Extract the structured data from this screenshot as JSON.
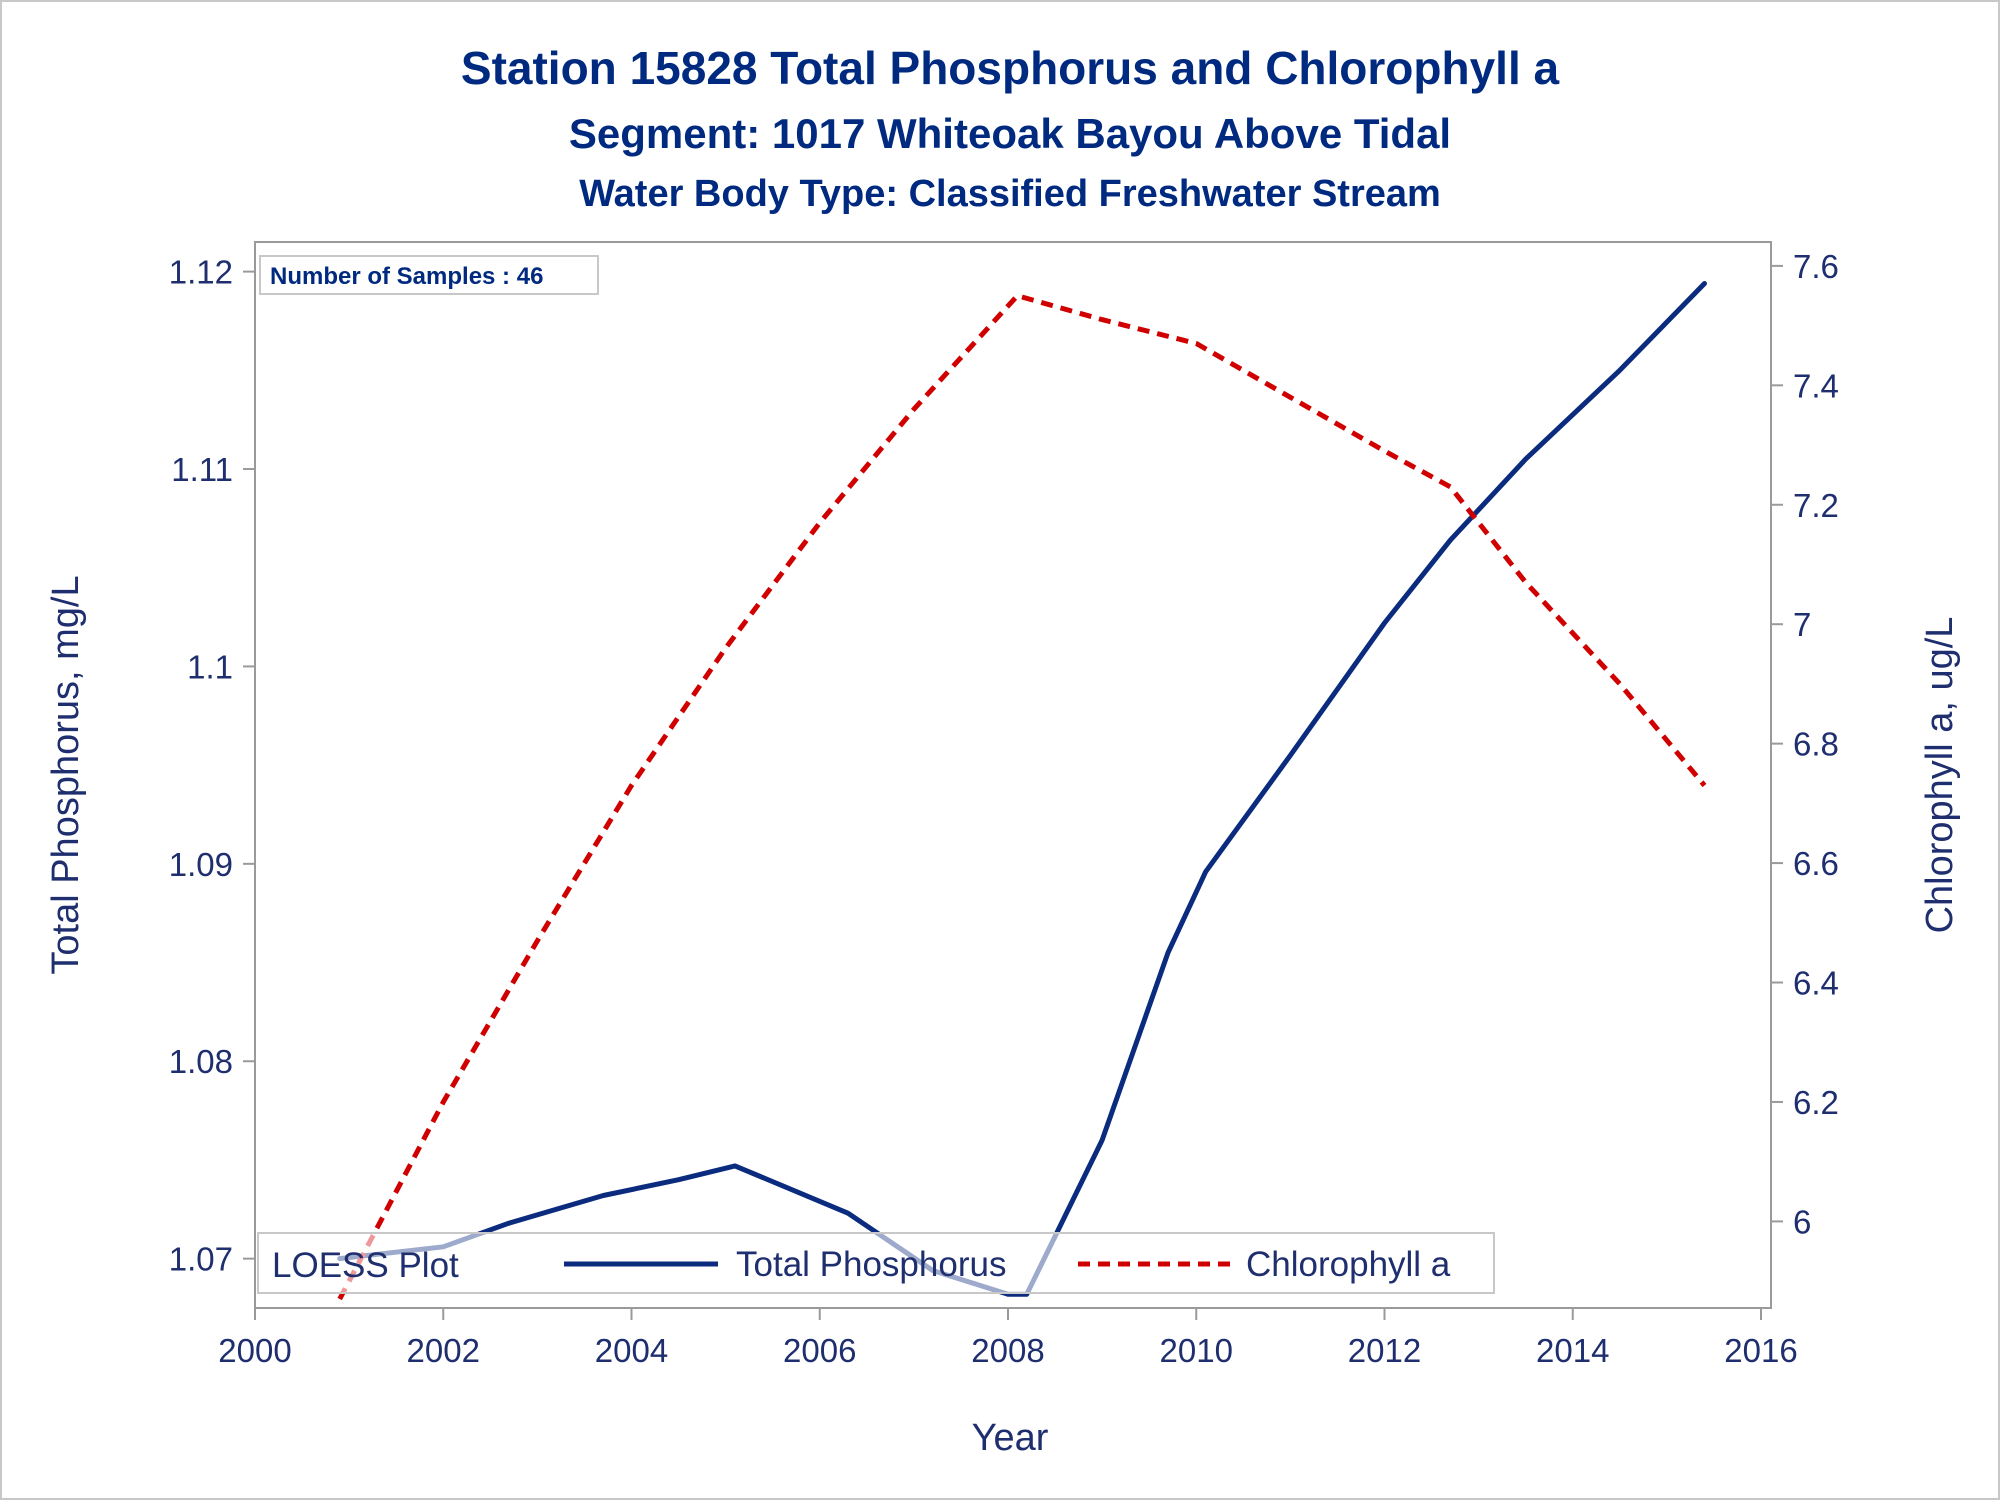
{
  "titles": {
    "line1": "Station 15828   Total Phosphorus and Chlorophyll a",
    "line2": "Segment: 1017  Whiteoak Bayou Above Tidal",
    "line3": "Water Body Type: Classified Freshwater Stream"
  },
  "inset": {
    "samples_label": "Number of Samples : 46"
  },
  "legend": {
    "title": "LOESS Plot",
    "items": [
      {
        "label": "Total Phosphorus",
        "color": "#0b2c7e",
        "style": "solid"
      },
      {
        "label": "Chlorophyll a",
        "color": "#d10000",
        "style": "dashed"
      }
    ]
  },
  "colors": {
    "text": "#1e2e6e",
    "title": "#002a80",
    "axis": "#9a9a9a",
    "tp": "#0b2c7e",
    "chl": "#d10000"
  },
  "chart_data": {
    "type": "line",
    "xlabel": "Year",
    "ylabel": "Total Phosphorus, mg/L",
    "y2label": "Chlorophyll a, ug/L",
    "xlim": [
      2000,
      2016
    ],
    "ylim": [
      1.0675,
      1.1215
    ],
    "y2lim": [
      5.855,
      7.64
    ],
    "xticks": [
      2000,
      2002,
      2004,
      2006,
      2008,
      2010,
      2012,
      2014,
      2016
    ],
    "yticks": [
      1.07,
      1.08,
      1.09,
      1.1,
      1.11,
      1.12
    ],
    "yticklabels": [
      "1.07",
      "1.08",
      "1.09",
      "1.1",
      "1.11",
      "1.12"
    ],
    "y2ticks": [
      6.0,
      6.2,
      6.4,
      6.6,
      6.8,
      7.0,
      7.2,
      7.4,
      7.6
    ],
    "y2ticklabels": [
      "6",
      "6.2",
      "6.4",
      "6.6",
      "6.8",
      "7",
      "7.2",
      "7.4",
      "7.6"
    ],
    "legend_position": "bottom-left",
    "grid": false,
    "series": [
      {
        "name": "Total Phosphorus",
        "axis": "left",
        "x": [
          2000.9,
          2002.0,
          2002.7,
          2003.7,
          2004.5,
          2005.1,
          2006.3,
          2007.2,
          2008.0,
          2008.2,
          2009.0,
          2009.7,
          2010.1,
          2011.0,
          2012.0,
          2012.7,
          2013.5,
          2014.5,
          2015.4
        ],
        "values": [
          1.07,
          1.0706,
          1.0718,
          1.0732,
          1.074,
          1.0747,
          1.0723,
          1.0694,
          1.0682,
          1.0682,
          1.076,
          1.0855,
          1.0896,
          1.0955,
          1.1022,
          1.1064,
          1.1105,
          1.115,
          1.1194
        ]
      },
      {
        "name": "Chlorophyll a",
        "axis": "right",
        "x": [
          2000.9,
          2002.0,
          2003.0,
          2004.0,
          2005.0,
          2006.0,
          2007.0,
          2008.1,
          2009.0,
          2010.0,
          2011.0,
          2012.0,
          2012.7,
          2013.5,
          2014.5,
          2015.4
        ],
        "values": [
          5.87,
          6.2,
          6.47,
          6.73,
          6.96,
          7.17,
          7.36,
          7.55,
          7.51,
          7.47,
          7.38,
          7.29,
          7.23,
          7.07,
          6.9,
          6.73
        ]
      }
    ]
  }
}
